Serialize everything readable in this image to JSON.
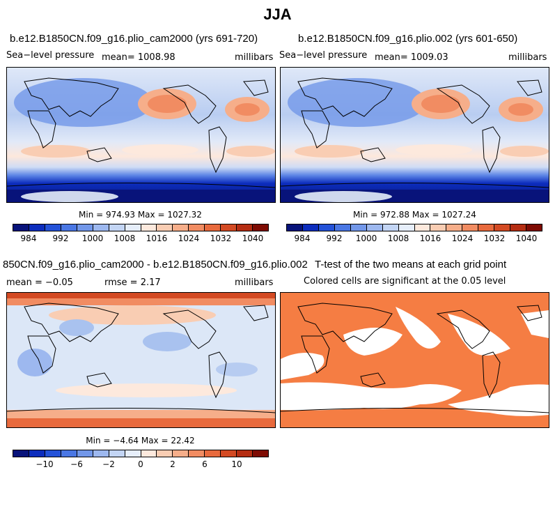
{
  "figure_title": "JJA",
  "panels": {
    "p1": {
      "title": "b.e12.B1850CN.f09_g16.plio_cam2000 (yrs 691-720)",
      "left_label": "Sea−level pressure",
      "mean_label": "mean= 1008.98",
      "units": "millibars",
      "minmax": "Min = 974.93 Max = 1027.32"
    },
    "p2": {
      "title": "b.e12.B1850CN.f09_g16.plio.002 (yrs 601-650)",
      "left_label": "Sea−level pressure",
      "mean_label": "mean= 1009.03",
      "units": "millibars",
      "minmax": "Min = 972.88 Max = 1027.24"
    },
    "p3": {
      "title": "850CN.f09_g16.plio_cam2000 - b.e12.B1850CN.f09_g16.plio.002",
      "mean_label": "mean = −0.05",
      "rmse_label": "rmse = 2.17",
      "units": "millibars",
      "minmax": "Min = −4.64 Max = 22.42"
    },
    "p4": {
      "title": "T-test of the two means at each grid point",
      "subtitle": "Colored cells are significant at the 0.05 level"
    }
  },
  "colorbar_abs": {
    "ticks": [
      "984",
      "992",
      "1000",
      "1008",
      "1016",
      "1024",
      "1032",
      "1040"
    ],
    "colors": [
      "#08137a",
      "#0c2dbd",
      "#2452d8",
      "#4a77e4",
      "#7297e9",
      "#9db8ef",
      "#c3d5f4",
      "#e6eefa",
      "#fde9dd",
      "#f9cdb3",
      "#f6ae8a",
      "#f18c62",
      "#e86a3d",
      "#d34a23",
      "#b52d12",
      "#7e0b03"
    ]
  },
  "colorbar_diff": {
    "ticks": [
      "−10",
      "−6",
      "−2",
      "0",
      "2",
      "6",
      "10"
    ],
    "colors": [
      "#08137a",
      "#0c2dbd",
      "#2452d8",
      "#4a77e4",
      "#7297e9",
      "#9db8ef",
      "#c3d5f4",
      "#e6eefa",
      "#fde9dd",
      "#f9cdb3",
      "#f6ae8a",
      "#f18c62",
      "#e86a3d",
      "#d34a23",
      "#b52d12",
      "#7e0b03"
    ]
  },
  "colors": {
    "ttest_fill": "#f57d43",
    "land_outline": "#000000"
  }
}
